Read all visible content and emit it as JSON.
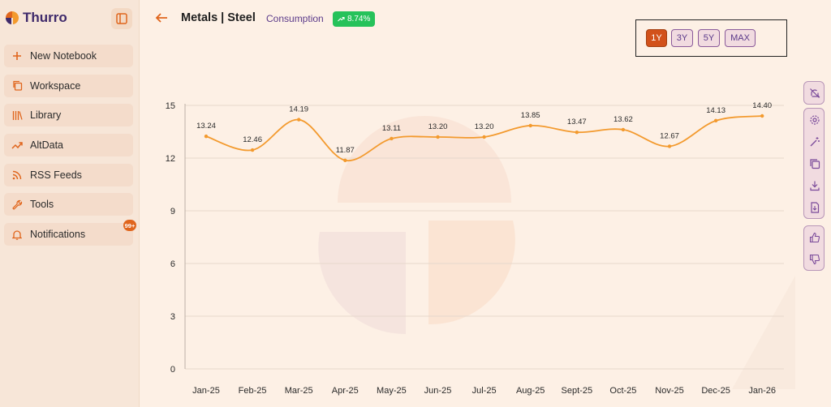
{
  "app": {
    "name": "Thurro"
  },
  "sidebar": {
    "items": [
      {
        "label": "New Notebook",
        "icon": "plus-icon"
      },
      {
        "label": "Workspace",
        "icon": "copy-icon"
      },
      {
        "label": "Library",
        "icon": "library-icon"
      },
      {
        "label": "AltData",
        "icon": "trend-icon"
      },
      {
        "label": "RSS Feeds",
        "icon": "rss-icon"
      },
      {
        "label": "Tools",
        "icon": "wrench-icon"
      },
      {
        "label": "Notifications",
        "icon": "bell-icon",
        "badge": "99+"
      }
    ]
  },
  "header": {
    "title": "Metals | Steel",
    "subtitle": "Consumption",
    "change": "8.74%"
  },
  "ranges": [
    {
      "label": "1Y",
      "active": true
    },
    {
      "label": "3Y",
      "active": false
    },
    {
      "label": "5Y",
      "active": false
    },
    {
      "label": "MAX",
      "active": false
    }
  ],
  "toolbar": {
    "groups": [
      [
        "bell-off-icon"
      ],
      [
        "gear-icon",
        "magic-wand-icon",
        "copy-icon",
        "download-icon",
        "file-export-icon"
      ],
      [
        "thumbs-up-icon",
        "thumbs-down-icon"
      ]
    ]
  },
  "colors": {
    "accent": "#e0651c",
    "line": "#f39a2e",
    "brand": "#3f2a6b"
  },
  "chart_data": {
    "type": "line",
    "categories": [
      "Jan-25",
      "Feb-25",
      "Mar-25",
      "Apr-25",
      "May-25",
      "Jun-25",
      "Jul-25",
      "Aug-25",
      "Sept-25",
      "Oct-25",
      "Nov-25",
      "Dec-25",
      "Jan-26"
    ],
    "values": [
      13.24,
      12.46,
      14.19,
      11.87,
      13.11,
      13.2,
      13.2,
      13.85,
      13.47,
      13.62,
      12.67,
      14.13,
      14.4
    ],
    "labels": [
      "13.24",
      "12.46",
      "14.19",
      "11.87",
      "13.11",
      "13.20",
      "13.20",
      "13.85",
      "13.47",
      "13.62",
      "12.67",
      "14.13",
      "14.40"
    ],
    "yticks": [
      "0",
      "3",
      "6",
      "9",
      "12",
      "15"
    ],
    "ylim": [
      0,
      15
    ],
    "grid": true,
    "legend": "none"
  }
}
